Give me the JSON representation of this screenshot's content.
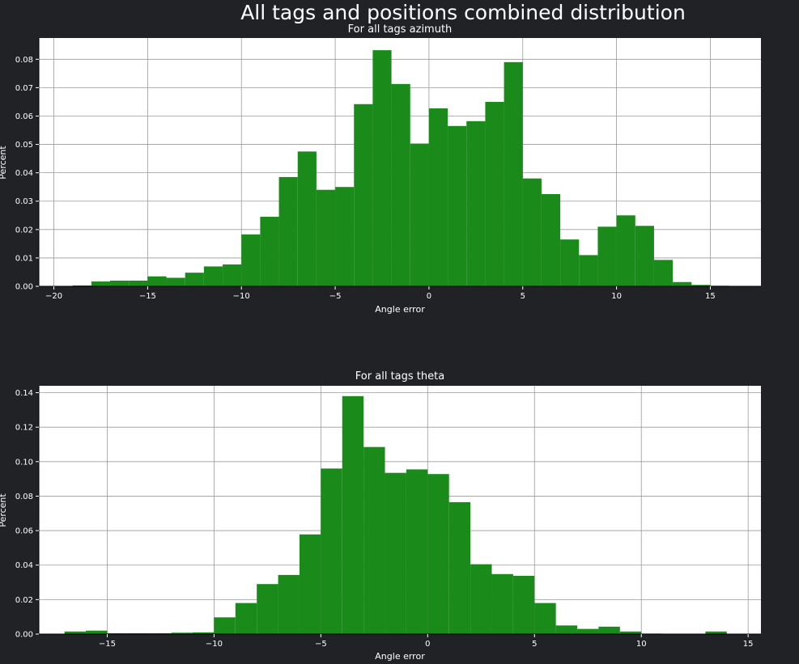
{
  "figure": {
    "title": "All tags and positions combined distribution"
  },
  "colors": {
    "background": "#212226",
    "bar": "#1a8a1a",
    "grid": "#9a9a9a"
  },
  "chart_data": [
    {
      "type": "bar",
      "title": "For all tags azimuth",
      "xlabel": "Angle error",
      "ylabel": "Percent",
      "xlim": [
        -20.8,
        17.7
      ],
      "ylim": [
        0,
        0.0875
      ],
      "xticks": [
        -20,
        -15,
        -10,
        -5,
        0,
        5,
        10,
        15
      ],
      "xtick_labels": [
        "−20",
        "−15",
        "−10",
        "−5",
        "0",
        "5",
        "10",
        "15"
      ],
      "yticks": [
        0,
        0.01,
        0.02,
        0.03,
        0.04,
        0.05,
        0.06,
        0.07,
        0.08
      ],
      "ytick_labels": [
        "0.00",
        "0.01",
        "0.02",
        "0.03",
        "0.04",
        "0.05",
        "0.06",
        "0.07",
        "0.08"
      ],
      "grid": true,
      "bin_edges": [
        -19,
        -18,
        -17,
        -16,
        -15,
        -14,
        -13,
        -12,
        -11,
        -10,
        -9,
        -8,
        -7,
        -6,
        -5,
        -4,
        -3,
        -2,
        -1,
        0,
        1,
        2,
        3,
        4,
        5,
        6,
        7,
        8,
        9,
        10,
        11,
        12,
        13,
        14,
        15,
        16
      ],
      "values": [
        0.0003,
        0.0017,
        0.002,
        0.002,
        0.0035,
        0.003,
        0.0048,
        0.007,
        0.0077,
        0.0183,
        0.0245,
        0.0385,
        0.0475,
        0.034,
        0.035,
        0.0642,
        0.0832,
        0.0713,
        0.0503,
        0.0627,
        0.0565,
        0.0582,
        0.065,
        0.079,
        0.038,
        0.0325,
        0.0165,
        0.011,
        0.021,
        0.025,
        0.0213,
        0.0093,
        0.0015,
        0.0005,
        0.0002
      ]
    },
    {
      "type": "bar",
      "title": "For all tags theta",
      "xlabel": "Angle error",
      "ylabel": "Percent",
      "xlim": [
        -18.2,
        15.6
      ],
      "ylim": [
        0,
        0.144
      ],
      "xticks": [
        -15,
        -10,
        -5,
        0,
        5,
        10,
        15
      ],
      "xtick_labels": [
        "−15",
        "−10",
        "−5",
        "0",
        "5",
        "10",
        "15"
      ],
      "yticks": [
        0,
        0.02,
        0.04,
        0.06,
        0.08,
        0.1,
        0.12,
        0.14
      ],
      "ytick_labels": [
        "0.00",
        "0.02",
        "0.04",
        "0.06",
        "0.08",
        "0.10",
        "0.12",
        "0.14"
      ],
      "grid": true,
      "bin_edges": [
        -17,
        -16,
        -15,
        -14,
        -13,
        -12,
        -11,
        -10,
        -9,
        -8,
        -7,
        -6,
        -5,
        -4,
        -3,
        -2,
        -1,
        0,
        1,
        2,
        3,
        4,
        5,
        6,
        7,
        8,
        9,
        10,
        11,
        12,
        13,
        14
      ],
      "values": [
        0.0015,
        0.002,
        0.0005,
        0.0005,
        0.0005,
        0.0008,
        0.001,
        0.0097,
        0.018,
        0.029,
        0.0343,
        0.0578,
        0.096,
        0.138,
        0.1085,
        0.0935,
        0.0955,
        0.0928,
        0.0765,
        0.0405,
        0.0348,
        0.0338,
        0.018,
        0.005,
        0.003,
        0.0043,
        0.0015,
        0.0003,
        0.0002,
        0.0002,
        0.0015
      ]
    }
  ]
}
